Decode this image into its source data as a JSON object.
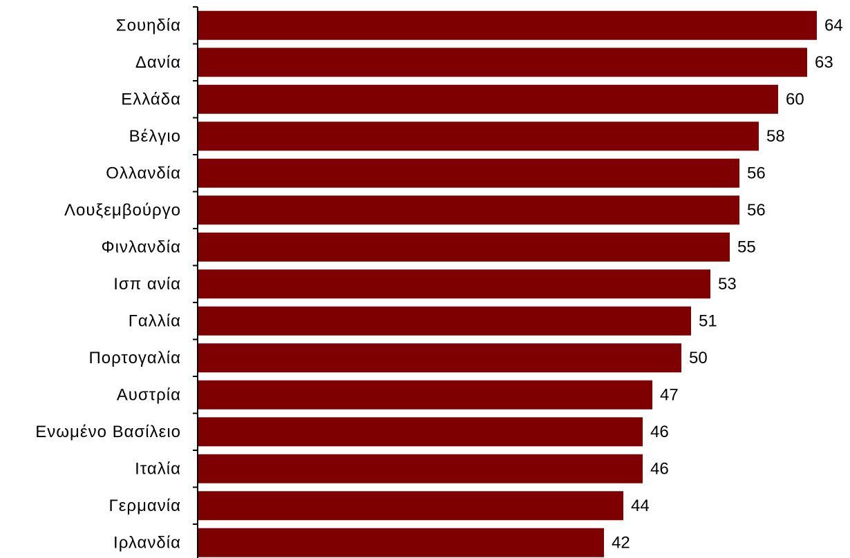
{
  "chart_data": {
    "type": "bar",
    "orientation": "horizontal",
    "categories": [
      "Σουηδία",
      "Δανία",
      "Ελλάδα",
      "Βέλγιο",
      "Ολλανδία",
      "Λουξεμβούργο",
      "Φινλανδία",
      "Ισπ ανία",
      "Γαλλία",
      "Πορτογαλία",
      "Αυστρία",
      "Ενωμένο Βασίλειο",
      "Ιταλία",
      "Γερμανία",
      "Ιρλανδία"
    ],
    "values": [
      64,
      63,
      60,
      58,
      56,
      56,
      55,
      53,
      51,
      50,
      47,
      46,
      46,
      44,
      42
    ],
    "data_labels": [
      "64",
      "63",
      "60",
      "58",
      "56",
      "56",
      "55",
      "53",
      "51",
      "50",
      "47",
      "46",
      "46",
      "44",
      "42"
    ],
    "bar_color": "#7f0000",
    "xlim": [
      0,
      64
    ],
    "grid": false,
    "legend": "none"
  }
}
